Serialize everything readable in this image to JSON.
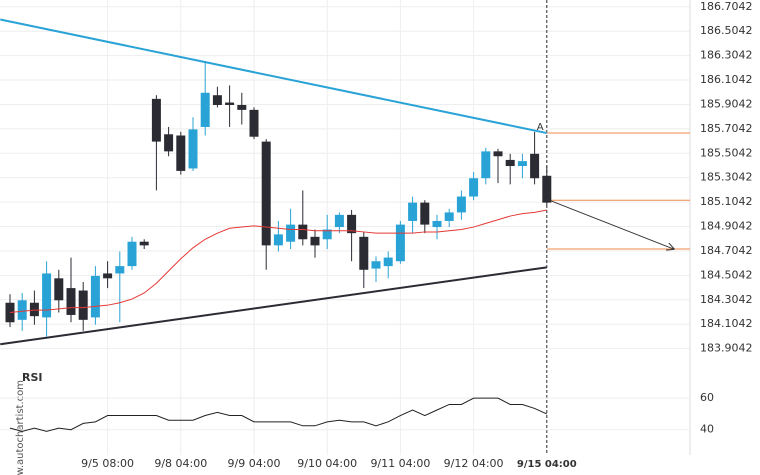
{
  "side_text": "www.autochartist.com",
  "chart_data": [
    {
      "type": "candlestick",
      "categories": [
        null,
        null,
        null,
        null,
        null,
        null,
        null,
        null,
        "9/5 08:00",
        null,
        null,
        null,
        null,
        null,
        "9/8 04:00",
        null,
        null,
        null,
        null,
        null,
        "9/9 04:00",
        null,
        null,
        null,
        null,
        null,
        "9/10 04:00",
        null,
        null,
        null,
        null,
        null,
        "9/11 04:00",
        null,
        null,
        null,
        null,
        null,
        "9/12 04:00",
        null,
        null,
        null,
        null,
        null,
        "9/15 04:00"
      ],
      "open": [
        184.28,
        184.14,
        184.28,
        184.16,
        184.48,
        184.4,
        184.38,
        184.16,
        184.52,
        184.52,
        184.58,
        184.78,
        185.95,
        185.66,
        185.65,
        185.38,
        185.72,
        185.98,
        185.92,
        185.9,
        185.86,
        185.6,
        184.75,
        184.78,
        184.92,
        184.82,
        184.8,
        184.9,
        185.0,
        184.82,
        184.56,
        184.58,
        184.62,
        184.95,
        185.1,
        184.9,
        184.95,
        185.02,
        185.15,
        185.3,
        185.52,
        185.45,
        185.4,
        185.5,
        185.32
      ],
      "high": [
        184.35,
        184.36,
        184.38,
        184.62,
        184.55,
        184.65,
        184.45,
        184.58,
        184.62,
        184.7,
        184.82,
        184.8,
        185.98,
        185.72,
        185.68,
        185.8,
        186.26,
        186.05,
        186.06,
        186.0,
        185.88,
        185.62,
        184.95,
        185.05,
        185.2,
        184.88,
        185.0,
        185.02,
        185.04,
        184.86,
        184.66,
        184.7,
        184.95,
        185.15,
        185.12,
        185.0,
        185.05,
        185.2,
        185.35,
        185.55,
        185.54,
        185.5,
        185.5,
        185.68,
        185.4
      ],
      "low": [
        184.08,
        184.05,
        184.1,
        184.0,
        184.2,
        184.12,
        184.05,
        184.1,
        184.4,
        184.12,
        184.55,
        184.72,
        185.2,
        185.48,
        185.33,
        185.36,
        185.65,
        185.88,
        185.72,
        185.74,
        185.62,
        184.55,
        184.7,
        184.72,
        184.75,
        184.65,
        184.72,
        184.85,
        184.62,
        184.4,
        184.45,
        184.48,
        184.6,
        184.85,
        184.85,
        184.8,
        184.9,
        184.96,
        185.12,
        185.25,
        185.26,
        185.25,
        185.3,
        185.25,
        185.08
      ],
      "close": [
        184.12,
        184.3,
        184.17,
        184.52,
        184.3,
        184.18,
        184.14,
        184.5,
        184.48,
        184.58,
        184.78,
        184.75,
        185.6,
        185.52,
        185.36,
        185.7,
        186.0,
        185.9,
        185.9,
        185.86,
        185.64,
        184.75,
        184.84,
        184.92,
        184.8,
        184.75,
        184.88,
        185.0,
        184.85,
        184.55,
        184.62,
        184.65,
        184.92,
        185.1,
        184.92,
        184.95,
        185.02,
        185.15,
        185.3,
        185.52,
        185.48,
        185.4,
        185.44,
        185.3,
        185.1
      ],
      "up_color": "#29a3d6",
      "down_color": "#2b2b33",
      "moving_average": {
        "color": "#e53935",
        "values": [
          184.2,
          184.21,
          184.22,
          184.22,
          184.23,
          184.24,
          184.24,
          184.25,
          184.26,
          184.28,
          184.31,
          184.36,
          184.44,
          184.54,
          184.64,
          184.73,
          184.8,
          184.85,
          184.89,
          184.9,
          184.91,
          184.9,
          184.89,
          184.88,
          184.88,
          184.87,
          184.87,
          184.87,
          184.87,
          184.86,
          184.85,
          184.85,
          184.85,
          184.85,
          184.86,
          184.86,
          184.87,
          184.88,
          184.9,
          184.93,
          184.96,
          184.99,
          185.01,
          185.02,
          185.04
        ]
      },
      "trendlines": [
        {
          "color": "#29a3d6",
          "points": [
            [
              -0.8,
              186.6
            ],
            [
              44,
              185.67
            ]
          ]
        },
        {
          "color": "#2b2b33",
          "points": [
            [
              -0.8,
              183.94
            ],
            [
              44,
              184.57
            ]
          ]
        }
      ],
      "annotation": "A",
      "annotation_color": "#f08a4b",
      "levels": [
        185.67,
        185.12,
        184.72
      ],
      "level_color": "#f08a4b",
      "arrow": [
        [
          44.2,
          185.12
        ],
        [
          54.4,
          184.72
        ]
      ],
      "ylim": [
        183.77,
        186.76
      ],
      "yticks": [
        183.9042,
        184.1042,
        184.3042,
        184.5042,
        184.7042,
        184.9042,
        185.1042,
        185.3042,
        185.5042,
        185.7042,
        185.9042,
        186.1042,
        186.3042,
        186.5042,
        186.7042
      ]
    },
    {
      "type": "line",
      "title": "RSI",
      "color": "#222222",
      "values": [
        41,
        39,
        41,
        39,
        41,
        40,
        44,
        45,
        49,
        49,
        49,
        49,
        49,
        46,
        46,
        46,
        49,
        51,
        49,
        49,
        45,
        45,
        45,
        45,
        42.5,
        42.5,
        45,
        46,
        45,
        45,
        42.5,
        45,
        49,
        52.5,
        49,
        52.5,
        56,
        56,
        60,
        60,
        60,
        56,
        56,
        53.5,
        50
      ],
      "ylim": [
        24,
        81
      ],
      "yticks": [
        40,
        60
      ]
    }
  ]
}
